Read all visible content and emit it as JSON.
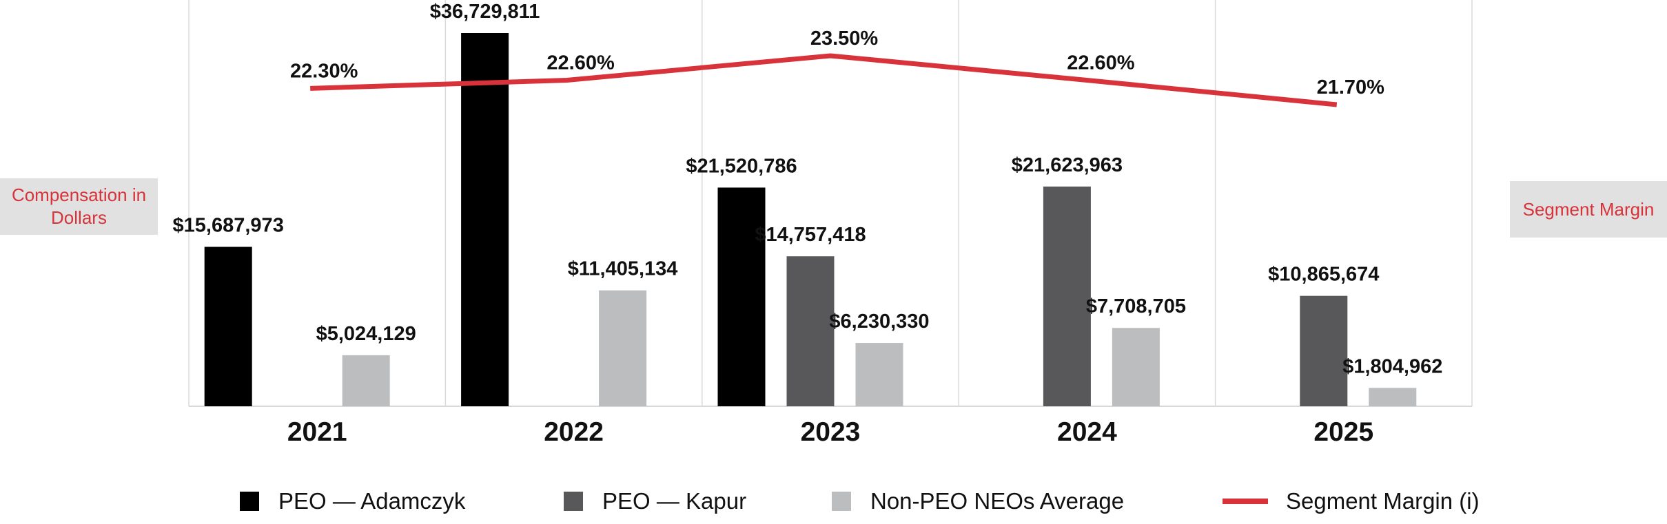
{
  "chart_data": {
    "type": "bar",
    "categories": [
      "2021",
      "2022",
      "2023",
      "2024",
      "2025"
    ],
    "series": [
      {
        "name": "PEO — Adamczyk",
        "color": "#000000",
        "values": [
          15687973,
          36729811,
          21520786,
          null,
          null
        ],
        "labels": [
          "$15,687,973",
          "$36,729,811",
          "$21,520,786",
          "",
          ""
        ]
      },
      {
        "name": "PEO — Kapur",
        "color": "#58585a",
        "values": [
          null,
          null,
          14757418,
          21623963,
          10865674
        ],
        "labels": [
          "",
          "",
          "$14,757,418",
          "$21,623,963",
          "$10,865,674"
        ]
      },
      {
        "name": "Non-PEO NEOs Average",
        "color": "#bcbdbf",
        "values": [
          5024129,
          11405134,
          6230330,
          7708705,
          1804962
        ],
        "labels": [
          "$5,024,129",
          "$11,405,134",
          "$6,230,330",
          "$7,708,705",
          "$1,804,962"
        ]
      }
    ],
    "line_series": {
      "name": "Segment Margin (i)",
      "color": "#d8333a",
      "values": [
        22.3,
        22.6,
        23.5,
        22.6,
        21.7
      ],
      "labels": [
        "22.30%",
        "22.60%",
        "23.50%",
        "22.60%",
        "21.70%"
      ]
    },
    "ylabel": "Compensation in Dollars",
    "y2label": "Segment Margin",
    "legend": "bottom",
    "grid": "vertical separators between categories"
  }
}
